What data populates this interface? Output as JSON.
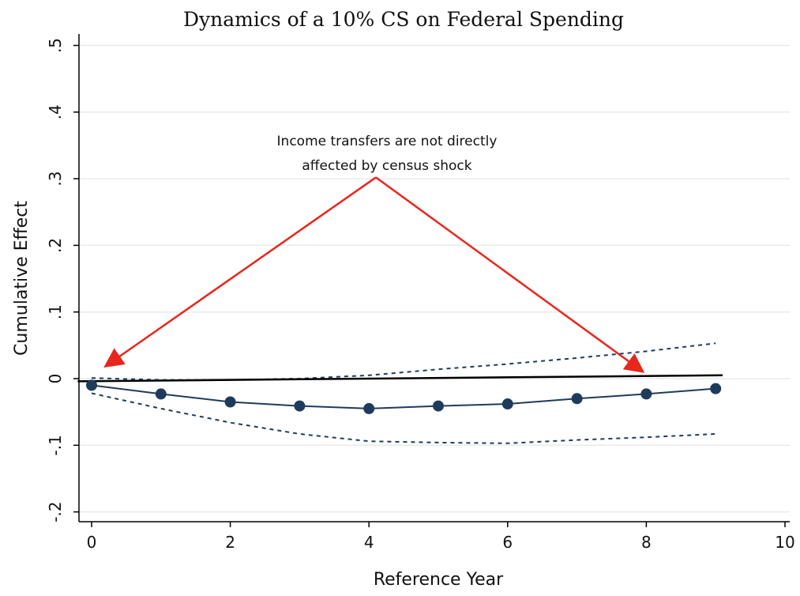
{
  "chart_data": {
    "type": "line",
    "title": "Dynamics of a 10% CS on Federal Spending",
    "xlabel": "Reference Year",
    "ylabel": "Cumulative Effect",
    "xlim": [
      0,
      10
    ],
    "ylim": [
      -0.2,
      0.5
    ],
    "x_ticks": [
      0,
      2,
      4,
      6,
      8,
      10
    ],
    "x_tick_labels": [
      "0",
      "2",
      "4",
      "6",
      "8",
      "10"
    ],
    "y_ticks": [
      -0.2,
      -0.1,
      0,
      0.1,
      0.2,
      0.3,
      0.4,
      0.5
    ],
    "y_tick_labels": [
      "-.2",
      "-.1",
      "0",
      ".1",
      ".2",
      ".3",
      ".4",
      ".5"
    ],
    "grid": true,
    "legend": "none",
    "series": [
      {
        "role": "point-estimate",
        "style": "solid line with markers",
        "color": "#1f3b5c",
        "x": [
          0,
          1,
          2,
          3,
          4,
          5,
          6,
          7,
          8,
          9
        ],
        "values": [
          -0.01,
          -0.023,
          -0.035,
          -0.041,
          -0.045,
          -0.041,
          -0.038,
          -0.03,
          -0.023,
          -0.015
        ]
      },
      {
        "role": "upper-confidence-bound",
        "style": "dashed",
        "color": "#1f3b5c",
        "x": [
          0,
          1,
          2,
          3,
          4,
          5,
          6,
          7,
          8,
          9
        ],
        "values": [
          0.001,
          -0.002,
          -0.002,
          0.0,
          0.005,
          0.014,
          0.022,
          0.031,
          0.041,
          0.053
        ]
      },
      {
        "role": "lower-confidence-bound",
        "style": "dashed",
        "color": "#1f3b5c",
        "x": [
          0,
          1,
          2,
          3,
          4,
          5,
          6,
          7,
          8,
          9
        ],
        "values": [
          -0.022,
          -0.045,
          -0.066,
          -0.083,
          -0.094,
          -0.096,
          -0.097,
          -0.092,
          -0.088,
          -0.083
        ]
      }
    ],
    "reference_line": {
      "role": "zero-reference",
      "color": "#000000",
      "x": [
        -0.2,
        9.1
      ],
      "values": [
        -0.004,
        0.005
      ]
    },
    "annotations": [
      {
        "text_lines": [
          "Income transfers are not directly",
          "affected by census shock"
        ],
        "color": "#e8261c",
        "arrow_origin": {
          "x": 4.1,
          "y": 0.302
        },
        "arrow_targets": [
          {
            "x": 0.22,
            "y": 0.02
          },
          {
            "x": 7.93,
            "y": 0.012
          }
        ]
      }
    ]
  }
}
